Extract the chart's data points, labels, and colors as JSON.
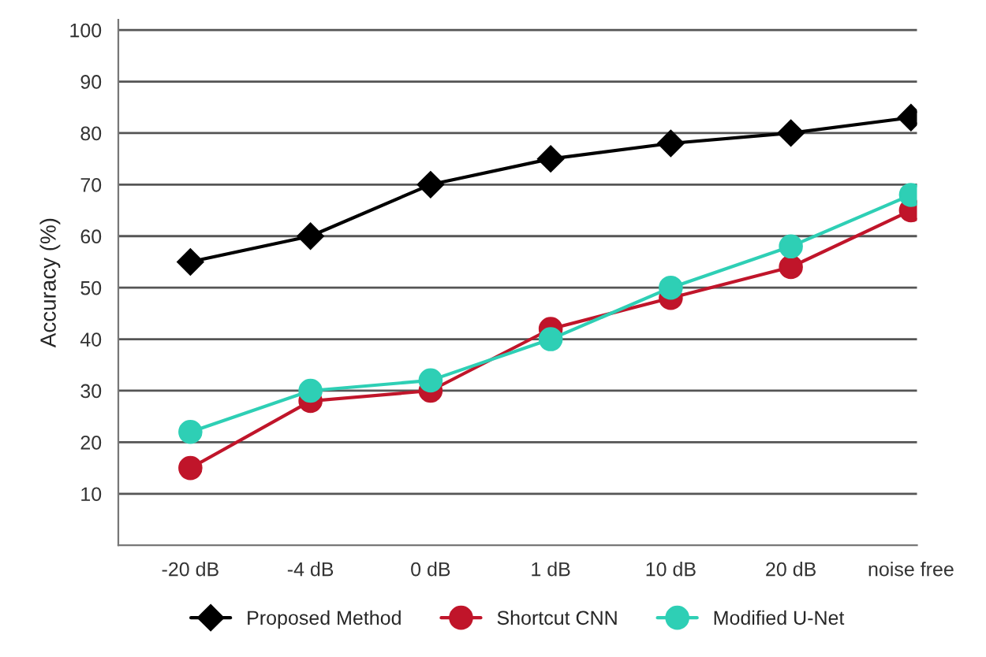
{
  "chart_data": {
    "type": "line",
    "ylabel": "Accuracy (%)",
    "categories": [
      "-20 dB",
      "-4 dB",
      "0 dB",
      "1 dB",
      "10 dB",
      "20 dB",
      "noise free"
    ],
    "series": [
      {
        "name": "Proposed Method",
        "color": "#000000",
        "marker": "diamond",
        "values": [
          55,
          60,
          70,
          75,
          78,
          80,
          83
        ]
      },
      {
        "name": "Shortcut CNN",
        "color": "#c0152a",
        "marker": "circle",
        "values": [
          15,
          28,
          30,
          42,
          48,
          54,
          65
        ]
      },
      {
        "name": "Modified U-Net",
        "color": "#2ecfb5",
        "marker": "circle",
        "values": [
          22,
          30,
          32,
          40,
          50,
          58,
          68
        ]
      }
    ],
    "ylim": [
      0,
      102
    ],
    "yticks": [
      10,
      20,
      30,
      40,
      50,
      60,
      70,
      80,
      90,
      100
    ],
    "grid": "y",
    "legend": "bottom",
    "line_style": "solid"
  }
}
